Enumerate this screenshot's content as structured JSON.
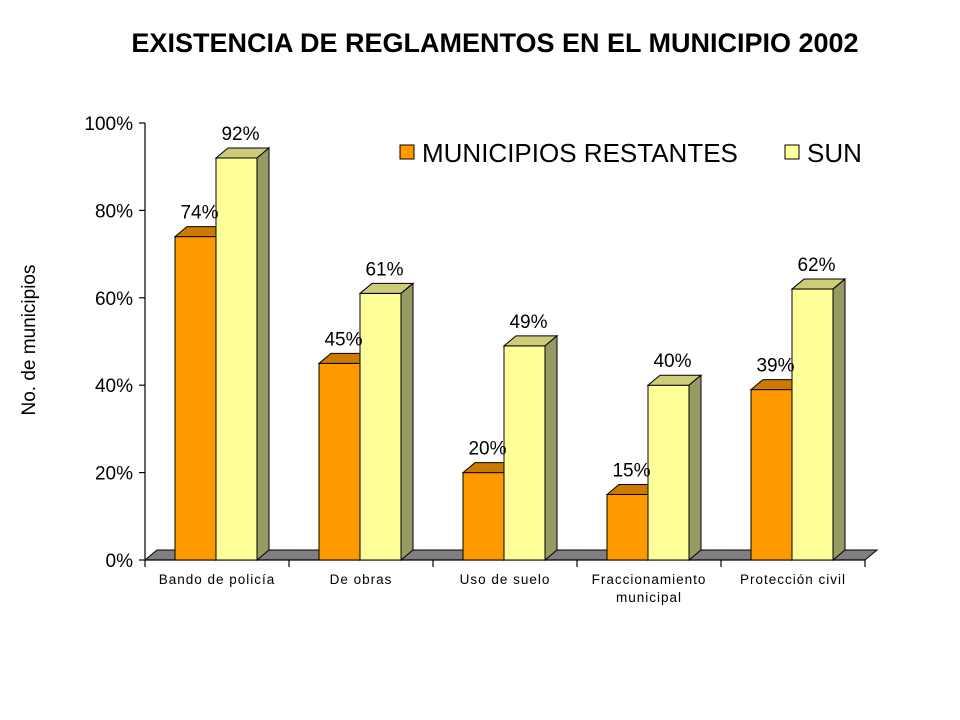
{
  "chart_data": {
    "type": "bar",
    "title": "EXISTENCIA DE REGLAMENTOS EN EL MUNICIPIO 2002",
    "xlabel": "",
    "ylabel": "No. de municipios",
    "ylim": [
      0,
      100
    ],
    "y_ticks": [
      "0%",
      "20%",
      "40%",
      "60%",
      "80%",
      "100%"
    ],
    "categories": [
      [
        "Bando de policía"
      ],
      [
        "De obras"
      ],
      [
        "Uso de suelo"
      ],
      [
        "Fraccionamiento",
        "municipal"
      ],
      [
        "Protección civil"
      ]
    ],
    "series": [
      {
        "name": "MUNICIPIOS RESTANTES",
        "values": [
          74,
          45,
          20,
          15,
          39
        ],
        "labels": [
          "74%",
          "45%",
          "20%",
          "15%",
          "39%"
        ]
      },
      {
        "name": "SUN",
        "values": [
          92,
          61,
          49,
          40,
          62
        ],
        "labels": [
          "92%",
          "61%",
          "49%",
          "40%",
          "62%"
        ]
      }
    ],
    "legend_position": "top-right",
    "grid": false,
    "style": "3d-bar"
  },
  "colors": {
    "series_front": [
      "#FF9900",
      "#FFFF99"
    ],
    "series_top": [
      "#CC7A00",
      "#CCCC7A"
    ],
    "series_side": [
      "#996600",
      "#999966"
    ],
    "floor": "#808080"
  }
}
